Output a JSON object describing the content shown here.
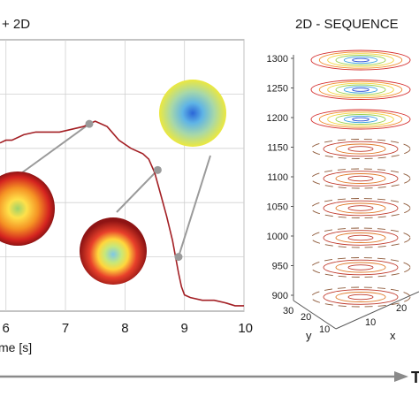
{
  "chart_data": [
    {
      "type": "line",
      "title": "+ 2D",
      "xlabel": "me [s]",
      "ylabel": "",
      "xlim": [
        5.9,
        10.0
      ],
      "ylim": [
        0.0,
        1.0
      ],
      "x_ticks": [
        "6",
        "7",
        "8",
        "9",
        "10"
      ],
      "grid": true,
      "series": [
        {
          "color": "#a31f24",
          "x": [
            5.9,
            6.0,
            6.1,
            6.3,
            6.5,
            6.7,
            6.9,
            7.1,
            7.3,
            7.5,
            7.7,
            7.9,
            8.1,
            8.3,
            8.4,
            8.5,
            8.6,
            8.7,
            8.8,
            8.85,
            8.9,
            8.95,
            9.0,
            9.1,
            9.3,
            9.5,
            9.7,
            9.85,
            10.0
          ],
          "values": [
            0.62,
            0.63,
            0.63,
            0.65,
            0.66,
            0.66,
            0.66,
            0.67,
            0.68,
            0.7,
            0.68,
            0.63,
            0.6,
            0.58,
            0.56,
            0.51,
            0.43,
            0.35,
            0.26,
            0.2,
            0.14,
            0.09,
            0.06,
            0.05,
            0.04,
            0.04,
            0.03,
            0.02,
            0.02
          ]
        }
      ],
      "annotations": [
        {
          "target_x": 7.4,
          "target_y": 0.69,
          "image": "heatmap-blue-center"
        },
        {
          "target_x": 8.55,
          "target_y": 0.52,
          "image": "heatmap-red-blue-center"
        },
        {
          "target_x": 8.9,
          "target_y": 0.2,
          "image": "heatmap-yellow-blue-center"
        }
      ]
    },
    {
      "type": "contour-stack",
      "title": "2D - SEQUENCE",
      "zlim": [
        900,
        1300
      ],
      "z_ticks": [
        "1300",
        "1250",
        "1200",
        "1150",
        "1100",
        "1050",
        "1000",
        "950",
        "900"
      ],
      "y_axis": {
        "label": "y",
        "ticks": [
          "30",
          "20",
          "10"
        ]
      },
      "x_axis": {
        "label": "x",
        "ticks": [
          "10",
          "20"
        ]
      }
    }
  ],
  "time_arrow": {
    "label": "T"
  },
  "colors": {
    "curve": "#a31f24",
    "marker": "#9a9a9a",
    "grid": "#d0d0d0",
    "axis": "#8a8a8a"
  }
}
